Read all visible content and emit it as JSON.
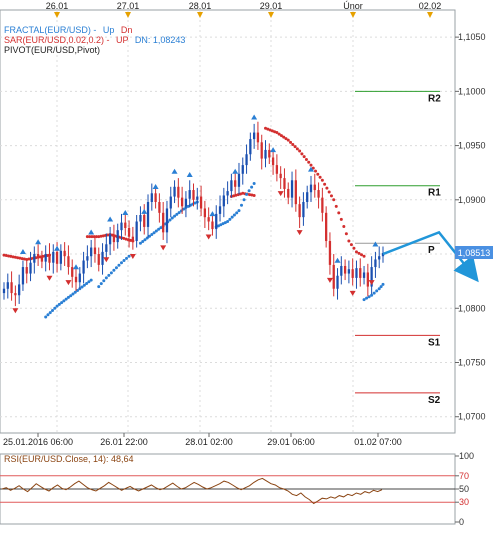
{
  "chart_data": {
    "type": "candlestick",
    "instrument": "EUR/USD",
    "top_dates": [
      "26.01",
      "27.01",
      "28.01",
      "29.01",
      "Únor",
      "02.02"
    ],
    "bottom_dates": [
      "25.01.2016 06:00",
      "26.01 22:00",
      "28.01 02:00",
      "29.01 06:00",
      "01.02 07:00"
    ],
    "price_ticks": [
      "1,1050",
      "1,1000",
      "1,0950",
      "1,0900",
      "1,0850",
      "1,0800",
      "1,0750",
      "1,0700"
    ],
    "ylim": [
      1.0685,
      1.1075
    ],
    "current_price": "1,08513",
    "legend": {
      "fractal_label": "FRACTAL(EUR/USD) -",
      "fractal_up": "Up",
      "fractal_dn": "Dn",
      "sar_label": "SAR(EUR/USD,0.02,0.2) -",
      "sar_up": "UP",
      "sar_dn": "DN: 1,08243",
      "pivot_label": "PIVOT(EUR/USD,Pivot)"
    },
    "pivots": [
      {
        "name": "R2",
        "value": 1.1
      },
      {
        "name": "R1",
        "value": 1.0913
      },
      {
        "name": "P",
        "value": 1.086
      },
      {
        "name": "S1",
        "value": 1.0775
      },
      {
        "name": "S2",
        "value": 1.0722
      }
    ],
    "candle_series": [
      1.0818,
      1.0824,
      1.0814,
      1.0812,
      1.0822,
      1.0838,
      1.0832,
      1.0842,
      1.085,
      1.0847,
      1.0843,
      1.085,
      1.0842,
      1.0852,
      1.0841,
      1.0853,
      1.0848,
      1.0838,
      1.0829,
      1.0824,
      1.0832,
      1.0844,
      1.0848,
      1.0856,
      1.085,
      1.084,
      1.0852,
      1.0859,
      1.0868,
      1.0861,
      1.0872,
      1.0879,
      1.0874,
      1.0866,
      1.0862,
      1.088,
      1.0886,
      1.0875,
      1.0898,
      1.0906,
      1.0898,
      1.0888,
      1.087,
      1.0892,
      1.0903,
      1.0912,
      1.0902,
      1.0894,
      1.0901,
      1.0909,
      1.09,
      1.0903,
      1.0892,
      1.0884,
      1.088,
      1.0873,
      1.0887,
      1.0894,
      1.0904,
      1.0908,
      1.0918,
      1.0912,
      1.0924,
      1.0932,
      1.0942,
      1.0956,
      1.0962,
      1.0953,
      1.0938,
      1.0946,
      1.0939,
      1.0932,
      1.0924,
      1.092,
      1.091,
      1.0902,
      1.0918,
      1.0896,
      1.0884,
      1.0898,
      1.0907,
      1.0914,
      1.0909,
      1.0902,
      1.0888,
      1.0862,
      1.084,
      1.0818,
      1.083,
      1.0839,
      1.0832,
      1.0836,
      1.0828,
      1.0837,
      1.0828,
      1.0833,
      1.082,
      1.0838,
      1.0845,
      1.0848,
      1.0851
    ],
    "sar_series": [
      {
        "trend": "down",
        "points": [
          [
            0,
            1.0849
          ],
          [
            3,
            1.0847
          ],
          [
            6,
            1.0845
          ],
          [
            9,
            1.0847
          ],
          [
            12,
            1.0849
          ]
        ]
      },
      {
        "trend": "down",
        "points": [
          [
            22,
            1.0866
          ],
          [
            25,
            1.0866
          ],
          [
            28,
            1.0868
          ],
          [
            31,
            1.0865
          ],
          [
            34,
            1.0862
          ]
        ]
      },
      {
        "trend": "down",
        "points": [
          [
            60,
            1.0903
          ],
          [
            63,
            1.0906
          ],
          [
            66,
            1.0904
          ]
        ]
      },
      {
        "trend": "down",
        "points": [
          [
            69,
            1.0966
          ],
          [
            72,
            1.0962
          ],
          [
            75,
            1.0955
          ],
          [
            78,
            1.0945
          ],
          [
            81,
            1.0932
          ],
          [
            84,
            1.0918
          ],
          [
            87,
            1.09
          ],
          [
            89,
            1.0882
          ],
          [
            91,
            1.0862
          ],
          [
            93,
            1.0852
          ],
          [
            95,
            1.0848
          ]
        ]
      },
      {
        "trend": "up",
        "points": [
          [
            11,
            1.0792
          ],
          [
            14,
            1.0802
          ],
          [
            17,
            1.081
          ],
          [
            20,
            1.0818
          ],
          [
            23,
            1.0826
          ]
        ]
      },
      {
        "trend": "up",
        "points": [
          [
            25,
            1.082
          ],
          [
            27,
            1.0828
          ],
          [
            29,
            1.0835
          ],
          [
            31,
            1.0842
          ],
          [
            33,
            1.0848
          ]
        ]
      },
      {
        "trend": "up",
        "points": [
          [
            36,
            1.086
          ],
          [
            39,
            1.0868
          ],
          [
            42,
            1.0876
          ],
          [
            45,
            1.0885
          ],
          [
            48,
            1.0893
          ],
          [
            51,
            1.0898
          ]
        ]
      },
      {
        "trend": "up",
        "points": [
          [
            56,
            1.0875
          ],
          [
            59,
            1.088
          ],
          [
            62,
            1.089
          ],
          [
            64,
            1.0905
          ],
          [
            66,
            1.0915
          ]
        ]
      },
      {
        "trend": "up",
        "points": [
          [
            95,
            1.0808
          ],
          [
            97,
            1.0812
          ],
          [
            99,
            1.0818
          ],
          [
            100,
            1.0822
          ]
        ]
      }
    ],
    "fractal_up_idx": [
      5,
      9,
      14,
      19,
      23,
      28,
      32,
      37,
      40,
      45,
      49,
      55,
      61,
      66,
      71,
      81,
      88,
      98
    ],
    "fractal_dn_idx": [
      3,
      12,
      17,
      27,
      34,
      42,
      54,
      73,
      78,
      86,
      92,
      97
    ],
    "forecast": [
      [
        1.085,
        0
      ],
      [
        1.087,
        14
      ],
      [
        1.0833,
        22
      ]
    ],
    "rsi": {
      "label": "RSI(EUR/USD.Close, 14): 48,64",
      "ticks": [
        100,
        70,
        50,
        30,
        0
      ],
      "levels": [
        70,
        50,
        30
      ],
      "values": [
        50,
        52,
        48,
        51,
        55,
        50,
        46,
        52,
        58,
        54,
        50,
        47,
        52,
        56,
        51,
        49,
        53,
        58,
        62,
        57,
        52,
        49,
        47,
        51,
        55,
        60,
        56,
        52,
        48,
        51,
        54,
        50,
        47,
        50,
        53,
        56,
        52,
        49,
        51,
        55,
        59,
        54,
        50,
        52,
        56,
        60,
        57,
        53,
        50,
        52,
        55,
        58,
        62,
        60,
        56,
        52,
        49,
        52,
        55,
        60,
        64,
        66,
        62,
        58,
        56,
        52,
        50,
        47,
        42,
        40,
        44,
        38,
        34,
        28,
        32,
        36,
        35,
        38,
        36,
        40,
        38,
        42,
        40,
        44,
        42,
        46,
        44,
        48,
        46,
        49
      ]
    }
  }
}
